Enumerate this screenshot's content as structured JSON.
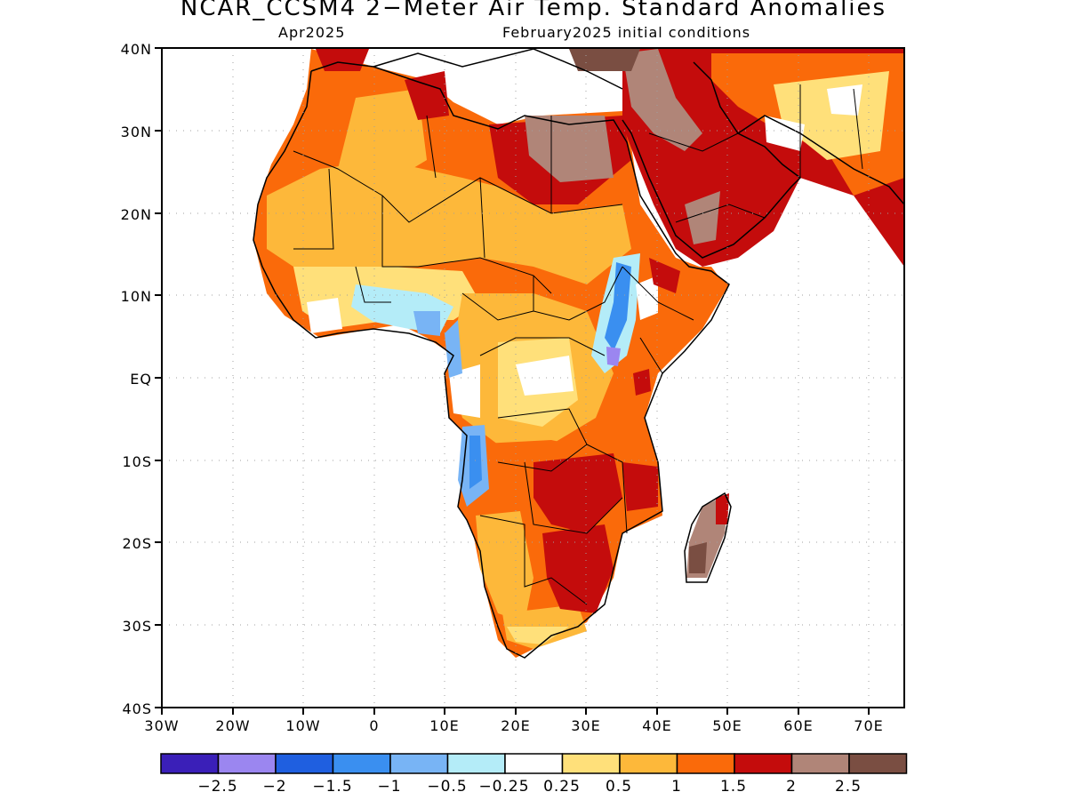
{
  "title": "NCAR_CCSM4 2−Meter Air Temp. Standard Anomalies",
  "subtitle_left": "Apr2025",
  "subtitle_right": "February2025 initial conditions",
  "axes": {
    "lat_ticks": [
      "40N",
      "30N",
      "20N",
      "10N",
      "EQ",
      "10S",
      "20S",
      "30S",
      "40S"
    ],
    "lon_ticks": [
      "30W",
      "20W",
      "10W",
      "0",
      "10E",
      "20E",
      "30E",
      "40E",
      "50E",
      "60E",
      "70E"
    ],
    "lat_range": [
      -40,
      40
    ],
    "lon_range": [
      -30,
      75
    ],
    "grid": "dotted"
  },
  "colorbar": {
    "colors": [
      "#3a1fb8",
      "#9b86f0",
      "#1f5fe0",
      "#3a8ff0",
      "#78b4f5",
      "#b4ecf8",
      "#ffffff",
      "#ffe07a",
      "#fdb83a",
      "#fa6a0a",
      "#c40c0c",
      "#b08578",
      "#7a4e42"
    ],
    "labels": [
      "−2.5",
      "−2",
      "−1.5",
      "−1",
      "−0.5",
      "−0.25",
      "0.25",
      "0.5",
      "1",
      "1.5",
      "2",
      "2.5"
    ]
  },
  "legend": {
    "ocean": "#ffffff",
    "coastline": "#000000"
  }
}
